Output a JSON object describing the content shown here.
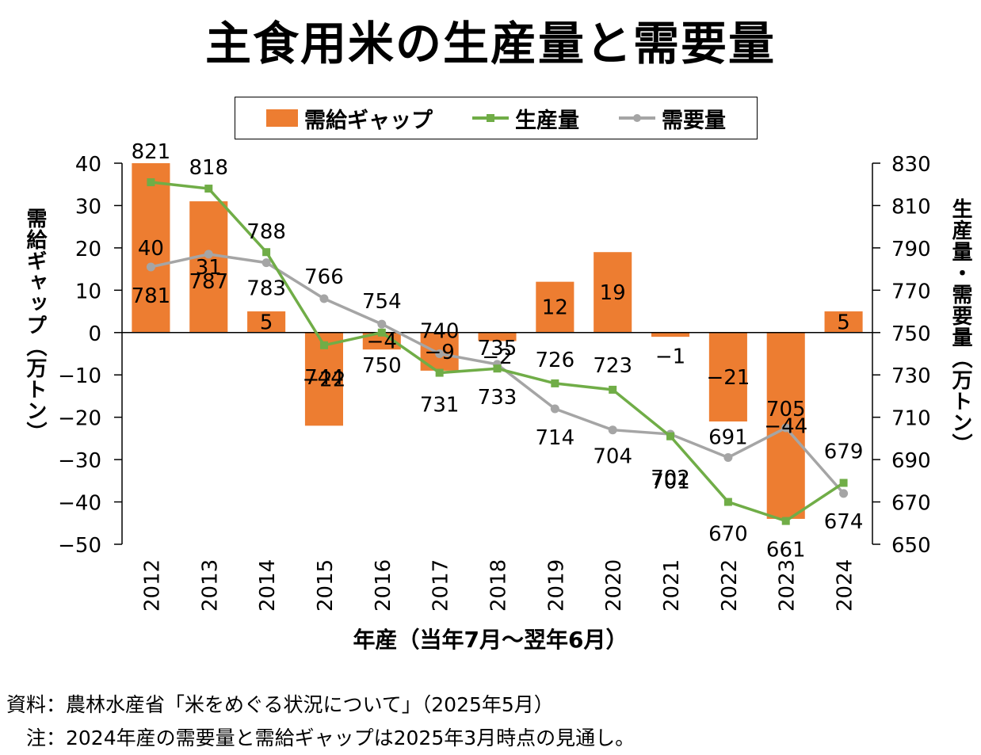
{
  "title": "主食用米の生産量と需要量",
  "legend": {
    "gap": "需給ギャップ",
    "production": "生産量",
    "demand": "需要量"
  },
  "colors": {
    "gap": "#ED7D31",
    "production": "#70AD47",
    "demand": "#A5A5A5"
  },
  "left_axis_label": "需給ギャップ（万トン）",
  "right_axis_label": "生産量・需要量（万トン）",
  "x_axis_label": "年産（当年7月〜翌年6月）",
  "notes": {
    "source": "資料：農林水産省「米をめぐる状況について」（2025年5月）",
    "note": "　注：2024年産の需要量と需給ギャップは2025年3月時点の見通し。"
  },
  "chart_data": {
    "type": "bar+line",
    "categories": [
      "2012",
      "2013",
      "2014",
      "2015",
      "2016",
      "2017",
      "2018",
      "2019",
      "2020",
      "2021",
      "2022",
      "2023",
      "2024"
    ],
    "left_axis": {
      "min": -50,
      "max": 40,
      "step": 10
    },
    "right_axis": {
      "min": 650,
      "max": 830,
      "step": 20
    },
    "series": [
      {
        "name": "需給ギャップ",
        "type": "bar",
        "axis": "left",
        "values": [
          40,
          31,
          5,
          -22,
          -4,
          -9,
          -2,
          12,
          19,
          -1,
          -21,
          -44,
          5
        ]
      },
      {
        "name": "生産量",
        "type": "line",
        "axis": "right",
        "values": [
          821,
          818,
          788,
          744,
          750,
          731,
          733,
          726,
          723,
          701,
          670,
          661,
          679
        ]
      },
      {
        "name": "需要量",
        "type": "line",
        "axis": "right",
        "values": [
          781,
          787,
          783,
          766,
          754,
          740,
          735,
          714,
          704,
          702,
          691,
          705,
          674
        ]
      }
    ],
    "left_ticks": [
      "40",
      "30",
      "20",
      "10",
      "0",
      "−10",
      "−20",
      "−30",
      "−40",
      "−50"
    ],
    "right_ticks": [
      "830",
      "810",
      "790",
      "770",
      "750",
      "730",
      "710",
      "690",
      "670",
      "650"
    ],
    "gap_labels": [
      "40",
      "31",
      "5",
      "−22",
      "−4",
      "−9",
      "−2",
      "12",
      "19",
      "−1",
      "−21",
      "−44",
      "5"
    ]
  }
}
